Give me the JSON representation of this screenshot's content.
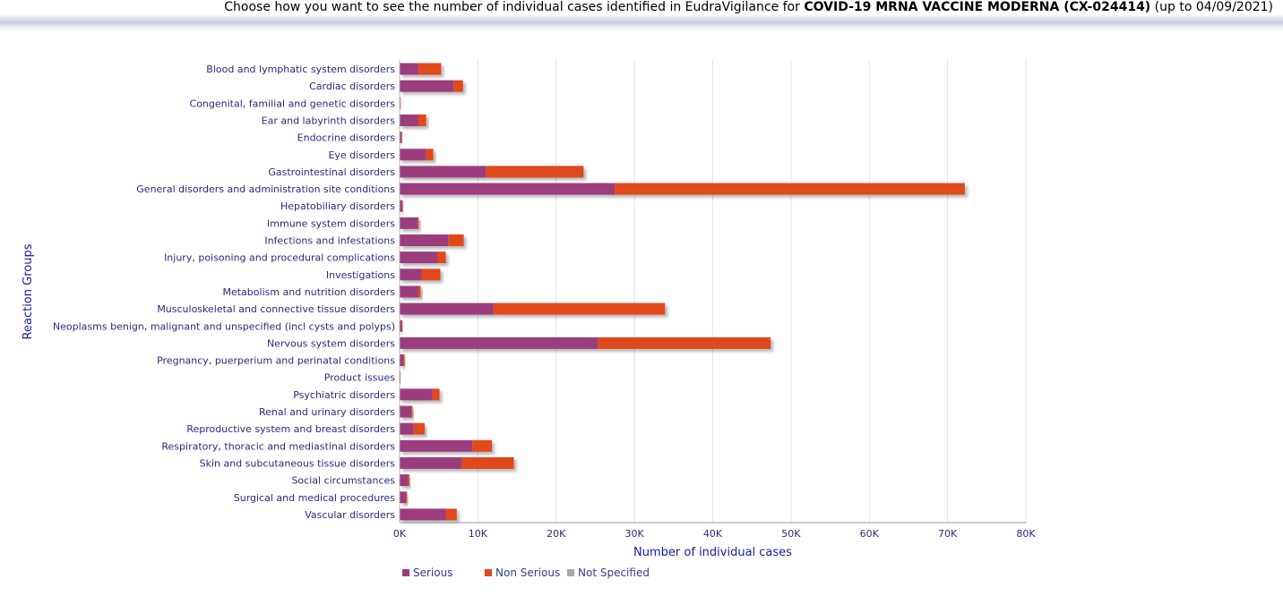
{
  "header": {
    "prefix": "Choose how you want to see the number of individual cases identified in EudraVigilance for ",
    "product": "COVID-19 MRNA VACCINE MODERNA (CX-024414)",
    "suffix": " (up to 04/09/2021)"
  },
  "chart_data": {
    "type": "bar",
    "orientation": "horizontal",
    "stacked": true,
    "title": "",
    "xlabel": "Number of individual cases",
    "ylabel": "Reaction Groups",
    "xlim": [
      0,
      80000
    ],
    "x_ticks": [
      0,
      10000,
      20000,
      30000,
      40000,
      50000,
      60000,
      70000,
      80000
    ],
    "x_tick_labels": [
      "0K",
      "10K",
      "20K",
      "30K",
      "40K",
      "50K",
      "60K",
      "70K",
      "80K"
    ],
    "grid": true,
    "legend_position": "bottom-left",
    "categories": [
      "Blood and lymphatic system disorders",
      "Cardiac disorders",
      "Congenital, familial and genetic disorders",
      "Ear and labyrinth disorders",
      "Endocrine disorders",
      "Eye disorders",
      "Gastrointestinal disorders",
      "General disorders and administration site conditions",
      "Hepatobiliary disorders",
      "Immune system disorders",
      "Infections and infestations",
      "Injury, poisoning and procedural complications",
      "Investigations",
      "Metabolism and nutrition disorders",
      "Musculoskeletal and connective tissue disorders",
      "Neoplasms benign, malignant and unspecified (incl cysts and polyps)",
      "Nervous system disorders",
      "Pregnancy, puerperium and perinatal conditions",
      "Product issues",
      "Psychiatric disorders",
      "Renal and urinary disorders",
      "Reproductive system and breast disorders",
      "Respiratory, thoracic and mediastinal disorders",
      "Skin and subcutaneous tissue disorders",
      "Social circumstances",
      "Surgical and medical procedures",
      "Vascular disorders"
    ],
    "series": [
      {
        "name": "Serious",
        "color": "#9c3d7e",
        "values": [
          2400,
          6900,
          80,
          2400,
          250,
          3400,
          11000,
          27500,
          350,
          2300,
          6200,
          4800,
          2800,
          2400,
          12000,
          300,
          25300,
          500,
          50,
          4200,
          1500,
          1800,
          9300,
          7900,
          1100,
          800,
          5900
        ]
      },
      {
        "name": "Non Serious",
        "color": "#e0491c",
        "values": [
          2900,
          1200,
          20,
          1000,
          50,
          900,
          12500,
          44700,
          50,
          150,
          2000,
          1100,
          2400,
          300,
          21900,
          50,
          22100,
          150,
          10,
          900,
          150,
          1400,
          2500,
          6700,
          150,
          150,
          1400
        ]
      },
      {
        "name": "Not Specified",
        "color": "#a6a6a6",
        "values": [
          0,
          0,
          0,
          0,
          0,
          0,
          0,
          0,
          0,
          0,
          0,
          0,
          0,
          0,
          0,
          0,
          0,
          0,
          0,
          0,
          0,
          0,
          0,
          0,
          0,
          0,
          0
        ]
      }
    ]
  }
}
